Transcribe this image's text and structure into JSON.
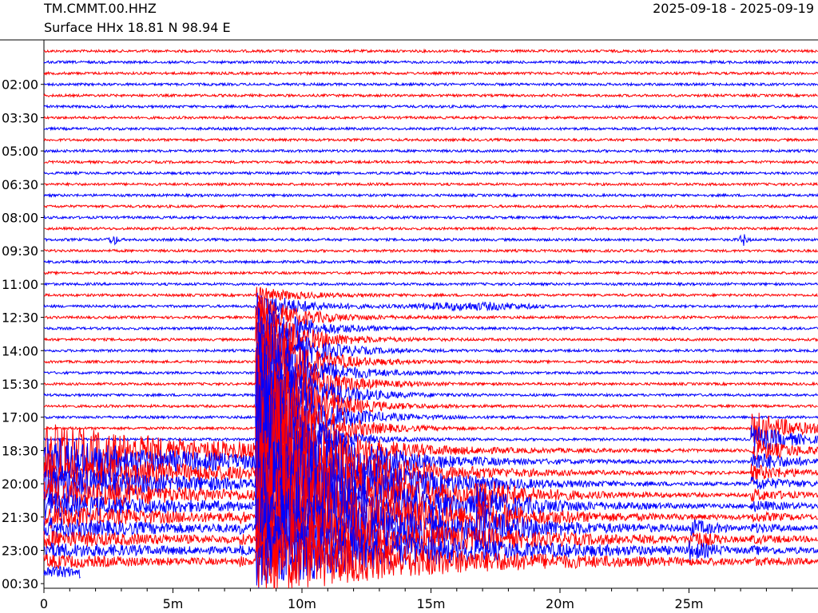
{
  "header": {
    "station": "TM.CMMT.00.HHZ",
    "subtitle": "Surface HHx  18.81 N 98.94 E",
    "date_range": "2025-09-18 - 2025-09-19"
  },
  "colors": {
    "red": "#ff0000",
    "blue": "#0000ff"
  },
  "chart_data": {
    "type": "line",
    "title": "TM.CMMT.00.HHZ",
    "subtitle": "Surface HHx  18.81 N 98.94 E",
    "date_range": "2025-09-18 - 2025-09-19",
    "xlabel": "",
    "ylabel": "",
    "x_ticks": [
      "0",
      "5m",
      "10m",
      "15m",
      "20m",
      "25m"
    ],
    "x_tick_minutes": [
      0,
      5,
      10,
      15,
      20,
      25
    ],
    "xlim_minutes": [
      0,
      30
    ],
    "y_ticks": [
      "02:00",
      "03:30",
      "05:00",
      "06:30",
      "08:00",
      "09:30",
      "11:00",
      "12:30",
      "14:00",
      "15:30",
      "17:00",
      "18:30",
      "20:00",
      "21:30",
      "23:00",
      "00:30"
    ],
    "row_minutes": 15,
    "num_rows": 48,
    "colors_alternate": [
      "red",
      "blue"
    ],
    "notable_events": [
      {
        "label": "large earthquake",
        "start_minute": 8.2,
        "rows": [
          0,
          47
        ]
      },
      {
        "label": "local event",
        "start_minute": 2.7,
        "row": 17
      },
      {
        "label": "local event",
        "start_minute": 27.0,
        "row": 17
      },
      {
        "label": "regional event",
        "start_minute": 13.5,
        "row": 23
      },
      {
        "label": "aftershock",
        "start_minute": 27.4,
        "rows": [
          34,
          40
        ]
      },
      {
        "label": "aftershock",
        "start_minute": 16.7,
        "rows": [
          41,
          45
        ]
      },
      {
        "label": "aftershock",
        "start_minute": 25.0,
        "rows": [
          43,
          45
        ]
      }
    ]
  }
}
